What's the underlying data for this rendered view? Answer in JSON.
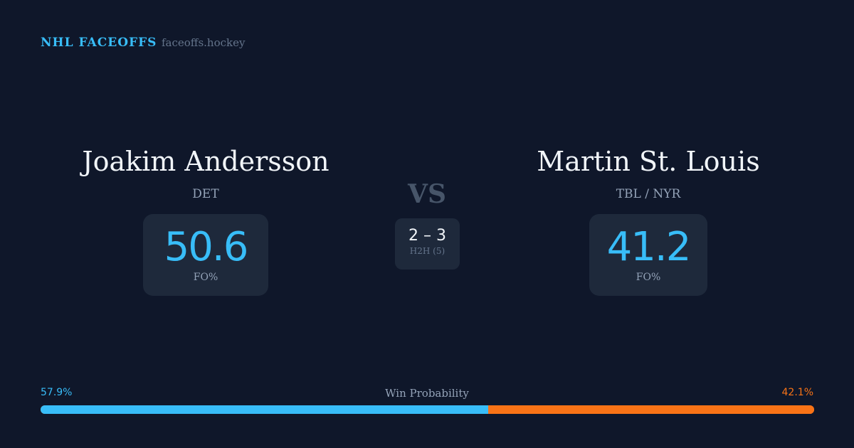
{
  "header": {
    "brand": "NHL FACEOFFS",
    "site": "faceoffs.hockey"
  },
  "player1": {
    "name": "Joakim Andersson",
    "team": "DET",
    "fo": "50.6",
    "fo_label": "FO%"
  },
  "player2": {
    "name": "Martin St. Louis",
    "team": "TBL / NYR",
    "fo": "41.2",
    "fo_label": "FO%"
  },
  "vs": "VS",
  "h2h": {
    "score": "2 – 3",
    "label": "H2H (5)"
  },
  "win_probability": {
    "label": "Win Probability",
    "left": "57.9%",
    "right": "42.1%",
    "left_value": 57.9,
    "colors": {
      "left": "#38bdf8",
      "right": "#f97316"
    }
  }
}
